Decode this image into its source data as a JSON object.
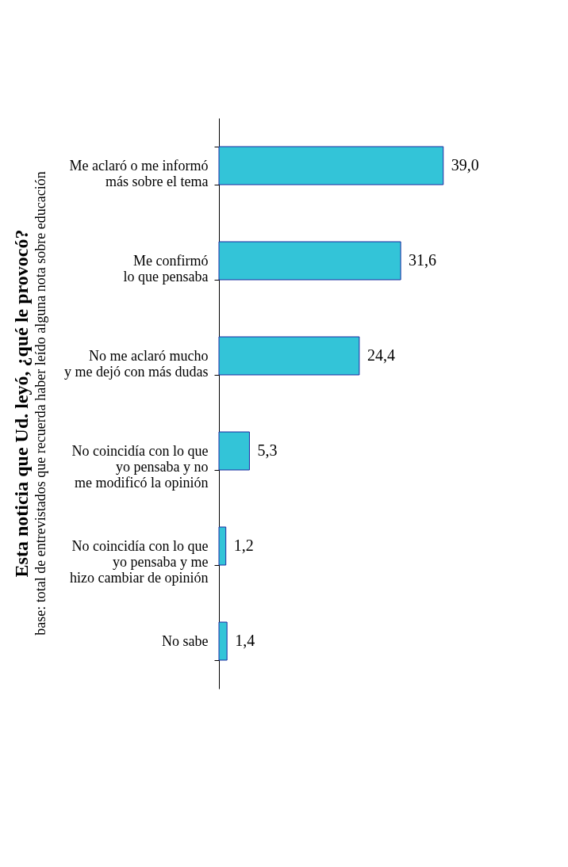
{
  "chart_data": {
    "type": "bar",
    "orientation": "horizontal",
    "title": "Esta noticia que Ud. leyó, ¿qué le  provocó?",
    "subtitle": "base: total de entrevistados que recuerda haber leído alguna nota sobre educación",
    "categories": [
      "Me aclaró o me informó\nmás sobre el tema",
      "Me confirmó\nlo que pensaba",
      "No me aclaró mucho\ny me dejó con más dudas",
      "No coincidía con lo que\nyo pensaba y no\nme modificó la opinión",
      "No coincidía con lo que\nyo pensaba y me\nhizo cambiar de opinión",
      "No sabe"
    ],
    "values": [
      39.0,
      31.6,
      24.4,
      5.3,
      1.2,
      1.4
    ],
    "value_labels": [
      "39,0",
      "31,6",
      "24,4",
      "5,3",
      "1,2",
      "1,4"
    ],
    "color": "#33c4d8"
  }
}
